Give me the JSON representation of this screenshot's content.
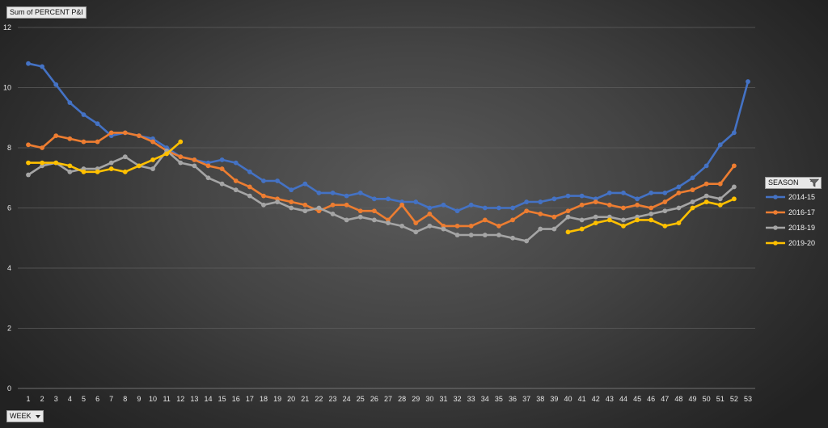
{
  "pivot_fields": {
    "value_field": "Sum of PERCENT P&I",
    "axis_field": "WEEK",
    "legend_field": "SEASON"
  },
  "chart_data": {
    "type": "line",
    "title": "",
    "xlabel": "",
    "ylabel": "",
    "x": [
      1,
      2,
      3,
      4,
      5,
      6,
      7,
      8,
      9,
      10,
      11,
      12,
      13,
      14,
      15,
      16,
      17,
      18,
      19,
      20,
      21,
      22,
      23,
      24,
      25,
      26,
      27,
      28,
      29,
      30,
      31,
      32,
      33,
      34,
      35,
      36,
      37,
      38,
      39,
      40,
      41,
      42,
      43,
      44,
      45,
      46,
      47,
      48,
      49,
      50,
      51,
      52,
      53
    ],
    "yticks": [
      0,
      2,
      4,
      6,
      8,
      10,
      12
    ],
    "ylim": [
      0,
      12
    ],
    "grid": true,
    "legend_position": "right",
    "series": [
      {
        "name": "2014-15",
        "color": "#4472c4",
        "values": [
          10.8,
          10.7,
          10.1,
          9.5,
          9.1,
          8.8,
          8.4,
          8.5,
          8.4,
          8.3,
          8.0,
          7.7,
          7.6,
          7.5,
          7.6,
          7.5,
          7.2,
          6.9,
          6.9,
          6.6,
          6.8,
          6.5,
          6.5,
          6.4,
          6.5,
          6.3,
          6.3,
          6.2,
          6.2,
          6.0,
          6.1,
          5.9,
          6.1,
          6.0,
          6.0,
          6.0,
          6.2,
          6.2,
          6.3,
          6.4,
          6.4,
          6.3,
          6.5,
          6.5,
          6.3,
          6.5,
          6.5,
          6.7,
          7.0,
          7.4,
          8.1,
          8.5,
          10.2
        ]
      },
      {
        "name": "2016-17",
        "color": "#ed7d31",
        "values": [
          8.1,
          8.0,
          8.4,
          8.3,
          8.2,
          8.2,
          8.5,
          8.5,
          8.4,
          8.2,
          7.9,
          7.7,
          7.6,
          7.4,
          7.3,
          6.9,
          6.7,
          6.4,
          6.3,
          6.2,
          6.1,
          5.9,
          6.1,
          6.1,
          5.9,
          5.9,
          5.6,
          6.1,
          5.5,
          5.8,
          5.4,
          5.4,
          5.4,
          5.6,
          5.4,
          5.6,
          5.9,
          5.8,
          5.7,
          5.9,
          6.1,
          6.2,
          6.1,
          6.0,
          6.1,
          6.0,
          6.2,
          6.5,
          6.6,
          6.8,
          6.8,
          7.4,
          null
        ]
      },
      {
        "name": "2018-19",
        "color": "#a5a5a5",
        "values": [
          7.1,
          7.4,
          7.5,
          7.2,
          7.3,
          7.3,
          7.5,
          7.7,
          7.4,
          7.3,
          7.9,
          7.5,
          7.4,
          7.0,
          6.8,
          6.6,
          6.4,
          6.1,
          6.2,
          6.0,
          5.9,
          6.0,
          5.8,
          5.6,
          5.7,
          5.6,
          5.5,
          5.4,
          5.2,
          5.4,
          5.3,
          5.1,
          5.1,
          5.1,
          5.1,
          5.0,
          4.9,
          5.3,
          5.3,
          5.7,
          5.6,
          5.7,
          5.7,
          5.6,
          5.7,
          5.8,
          5.9,
          6.0,
          6.2,
          6.4,
          6.3,
          6.7,
          null
        ]
      },
      {
        "name": "2019-20",
        "color": "#ffc000",
        "values": [
          7.5,
          7.5,
          7.5,
          7.4,
          7.2,
          7.2,
          7.3,
          7.2,
          7.4,
          7.6,
          7.8,
          8.2,
          null,
          null,
          null,
          null,
          null,
          null,
          null,
          null,
          null,
          null,
          null,
          null,
          null,
          null,
          null,
          null,
          null,
          null,
          null,
          null,
          null,
          null,
          null,
          null,
          null,
          null,
          null,
          5.2,
          5.3,
          5.5,
          5.6,
          5.4,
          5.6,
          5.6,
          5.4,
          5.5,
          6.0,
          6.2,
          6.1,
          6.3,
          null
        ]
      }
    ]
  }
}
